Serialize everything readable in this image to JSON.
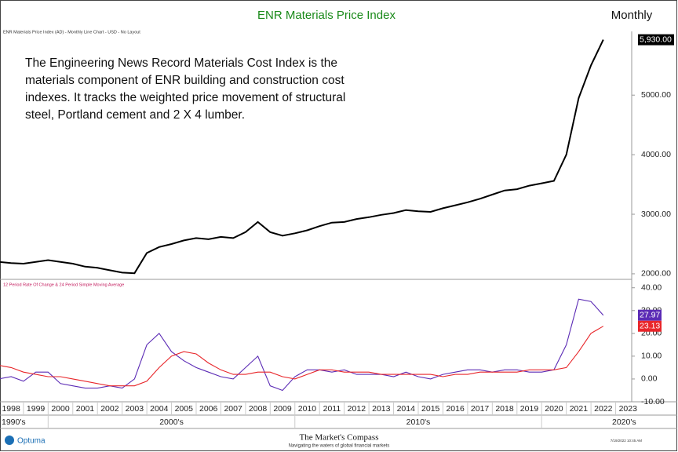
{
  "header": {
    "title": "ENR Materials Price Index",
    "period": "Monthly",
    "subtitle": "ENR Materials Price Index (AD) - Monthly Line Chart - USD - No Layout",
    "annotation": "The Engineering News Record Materials Cost Index is the materials component of ENR building and construction cost indexes. It tracks the weighted price movement of structural steel, Portland cement and 2 X 4 lumber."
  },
  "chart_data": [
    {
      "type": "line",
      "xlim": [
        1998.05,
        2023.65
      ],
      "ylim": [
        1920,
        6070
      ],
      "yticks": [
        {
          "value": 2000,
          "label": "2000.00"
        },
        {
          "value": 3000,
          "label": "3000.00"
        },
        {
          "value": 4000,
          "label": "4000.00"
        },
        {
          "value": 5000,
          "label": "5000.00"
        }
      ],
      "x": [
        1998,
        1998.5,
        1999,
        1999.5,
        2000,
        2000.5,
        2001,
        2001.5,
        2002,
        2002.5,
        2003,
        2003.5,
        2004,
        2004.5,
        2005,
        2005.5,
        2006,
        2006.5,
        2007,
        2007.5,
        2008,
        2008.5,
        2009,
        2009.5,
        2010,
        2010.5,
        2011,
        2011.5,
        2012,
        2012.5,
        2013,
        2013.5,
        2014,
        2014.5,
        2015,
        2015.5,
        2016,
        2016.5,
        2017,
        2017.5,
        2018,
        2018.5,
        2019,
        2019.5,
        2020,
        2020.5,
        2021,
        2021.5,
        2022,
        2022.5
      ],
      "series": [
        {
          "name": "ENR Materials Price Index",
          "color": "#000000",
          "values": [
            2200,
            2180,
            2170,
            2200,
            2230,
            2200,
            2170,
            2120,
            2100,
            2060,
            2020,
            2010,
            2350,
            2450,
            2500,
            2560,
            2600,
            2580,
            2620,
            2600,
            2700,
            2870,
            2700,
            2640,
            2680,
            2730,
            2800,
            2860,
            2870,
            2920,
            2950,
            2990,
            3020,
            3070,
            3050,
            3040,
            3100,
            3150,
            3200,
            3260,
            3330,
            3400,
            3420,
            3480,
            3520,
            3560,
            4000,
            4950,
            5500,
            5930
          ],
          "value_labels": [
            null,
            null,
            null,
            null,
            null,
            null,
            null,
            null,
            null,
            null,
            null,
            null,
            null,
            null,
            null,
            null,
            null,
            null,
            null,
            null,
            null,
            null,
            null,
            null,
            null,
            null,
            null,
            null,
            null,
            null,
            null,
            null,
            null,
            null,
            null,
            null,
            null,
            null,
            null,
            null,
            null,
            null,
            null,
            null,
            null,
            null,
            null,
            null,
            null,
            "5,930.00"
          ]
        }
      ]
    },
    {
      "type": "line",
      "title": "12 Period Rate Of Change & 24 Period Simple Moving Average",
      "xlim": [
        1998.05,
        2023.65
      ],
      "ylim": [
        -10,
        43
      ],
      "yticks": [
        {
          "value": -10,
          "label": "-10.00"
        },
        {
          "value": 0,
          "label": "0.00"
        },
        {
          "value": 10,
          "label": "10.00"
        },
        {
          "value": 20,
          "label": "20.00"
        },
        {
          "value": 30,
          "label": "30.00"
        },
        {
          "value": 40,
          "label": "40.00"
        }
      ],
      "xticks": [
        1998,
        1999,
        2000,
        2001,
        2002,
        2003,
        2004,
        2005,
        2006,
        2007,
        2008,
        2009,
        2010,
        2011,
        2012,
        2013,
        2014,
        2015,
        2016,
        2017,
        2018,
        2019,
        2020,
        2021,
        2022,
        2023
      ],
      "x": [
        1998,
        1998.5,
        1999,
        1999.5,
        2000,
        2000.5,
        2001,
        2001.5,
        2002,
        2002.5,
        2003,
        2003.5,
        2004,
        2004.5,
        2005,
        2005.5,
        2006,
        2006.5,
        2007,
        2007.5,
        2008,
        2008.5,
        2009,
        2009.5,
        2010,
        2010.5,
        2011,
        2011.5,
        2012,
        2012.5,
        2013,
        2013.5,
        2014,
        2014.5,
        2015,
        2015.5,
        2016,
        2016.5,
        2017,
        2017.5,
        2018,
        2018.5,
        2019,
        2019.5,
        2020,
        2020.5,
        2021,
        2021.5,
        2022,
        2022.5
      ],
      "series": [
        {
          "name": "12 Period Rate Of Change",
          "color": "#5b2bb5",
          "values": [
            0,
            1,
            -1,
            3,
            3,
            -2,
            -3,
            -4,
            -4,
            -3,
            -4,
            0,
            15,
            20,
            12,
            8,
            5,
            3,
            1,
            0,
            5,
            10,
            -3,
            -5,
            1,
            4,
            4,
            3,
            4,
            2,
            2,
            2,
            1,
            3,
            1,
            0,
            2,
            3,
            4,
            4,
            3,
            4,
            4,
            3,
            3,
            4,
            15,
            35,
            34,
            27.97
          ]
        },
        {
          "name": "24 Period Simple Moving Average",
          "color": "#e8262a",
          "values": [
            6,
            5,
            3,
            2,
            1,
            1,
            0,
            -1,
            -2,
            -3,
            -3,
            -3,
            -1,
            5,
            10,
            12,
            11,
            7,
            4,
            2,
            2,
            3,
            3,
            1,
            0,
            2,
            4,
            4,
            3,
            3,
            3,
            2,
            2,
            2,
            2,
            2,
            1,
            2,
            2,
            3,
            3,
            3,
            3,
            4,
            4,
            4,
            5,
            12,
            20,
            23.13
          ]
        }
      ]
    }
  ],
  "decades": [
    "1990's",
    "2000's",
    "2010's",
    "2020's"
  ],
  "footer": {
    "brand": "Optuma",
    "publisher": "The Market's Compass",
    "tagline": "Navigating the waters of global financial markets",
    "timestamp": "7/19/2022 10:45 AM"
  }
}
